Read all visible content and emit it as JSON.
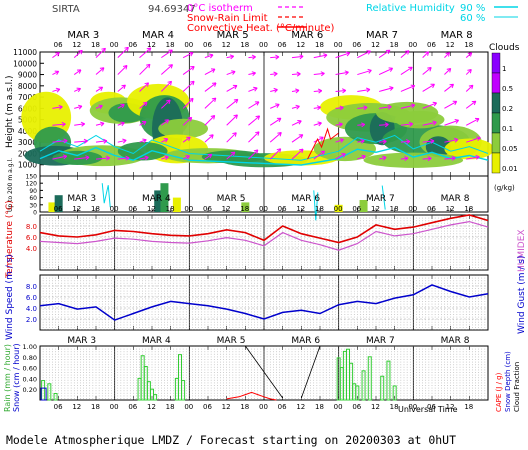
{
  "header": {
    "site": "SIRTA",
    "coords": "94.69347",
    "legend_left": [
      {
        "label": "0°C isotherm",
        "style": "dashed",
        "color": "#ff00ff"
      },
      {
        "label": "Snow-Rain Limit",
        "style": "dashed",
        "color": "#ff0000"
      },
      {
        "label": "Convective Heat. (°C/minute)",
        "style": "solid",
        "color": "#ff0000"
      }
    ],
    "legend_right": [
      {
        "label": "Relative Humidity",
        "value": "90 %",
        "color": "#00e5ff"
      },
      {
        "label": "",
        "value": "60 %",
        "color": "#00e5ff"
      }
    ]
  },
  "time_axis": {
    "day_labels": [
      "MAR 3",
      "MAR 4",
      "MAR 5",
      "MAR 6",
      "MAR 7",
      "MAR 8"
    ],
    "hour_labels": [
      "06",
      "12",
      "18",
      "00",
      "06",
      "12",
      "18",
      "00",
      "06",
      "12",
      "18",
      "00",
      "06",
      "12",
      "18",
      "00",
      "06",
      "12",
      "18",
      "00",
      "06",
      "12",
      "18"
    ],
    "xlabel": "Universal Time"
  },
  "clouds_legend": {
    "title": "Clouds",
    "unit": "(g/kg)",
    "levels": [
      "1",
      "0.5",
      "0.2",
      "0.1",
      "0.05",
      "0.01"
    ]
  },
  "panel_labels": {
    "height": "Height (m a.s.l.)",
    "lower_height": "Up to 200 m a.g.l.",
    "temperature": "Temperature (°C)",
    "humidex": "HUMIDEX",
    "wind_speed": "Wind Speed (m / s)",
    "wind_gust": "Wind Gust (m / s)",
    "rain": "Rain (mm / hour)",
    "snow": "Snow (cm / hour)",
    "cape": "CAPE (J / g)",
    "snow_depth": "Snow Depth (cm)",
    "cloud_fraction": "Cloud Fraction"
  },
  "footer": "Modele Atmospherique LMDZ / Forecast starting on 20200303 at 0hUT",
  "colors": {
    "temperature": "#e00000",
    "humidex": "#cc55cc",
    "wind": "#0000cc",
    "rain": "#33cc33",
    "cloud_dark": "#1b6b5a",
    "cloud_mid": "#2f9a4c",
    "cloud_light": "#8ccc3c",
    "cloud_pale": "#e8f000"
  },
  "chart_data": [
    {
      "type": "area",
      "name": "clouds",
      "ylabel": "Height (m a.s.l.)",
      "ylim": [
        0,
        11000
      ],
      "yticks": [
        1000,
        2000,
        3000,
        4000,
        5000,
        6000,
        7000,
        8000,
        9000,
        10000,
        11000
      ]
    },
    {
      "type": "area",
      "name": "low levels",
      "ylabel": "Up to 200 m a.g.l.",
      "ylim": [
        0,
        150
      ],
      "yticks": [
        0,
        30,
        60,
        90,
        120,
        150
      ]
    },
    {
      "type": "line",
      "name": "temperature",
      "ylabel": "Temperature (°C)",
      "ylim": [
        0,
        10
      ],
      "yticks": [
        4.0,
        6.0,
        8.0
      ],
      "x_hours": [
        0,
        6,
        12,
        18,
        24,
        30,
        36,
        42,
        48,
        54,
        60,
        66,
        72,
        78,
        84,
        90,
        96,
        102,
        108,
        114,
        120,
        126,
        132,
        138,
        144
      ],
      "series": [
        {
          "name": "Temperature",
          "values": [
            6.8,
            6.2,
            6.0,
            6.4,
            7.2,
            7.0,
            6.6,
            6.3,
            6.2,
            6.6,
            7.3,
            6.8,
            5.4,
            8.0,
            6.6,
            5.8,
            5.0,
            6.0,
            8.2,
            7.4,
            7.8,
            8.6,
            9.4,
            10.0,
            9.0
          ]
        },
        {
          "name": "HUMIDEX",
          "values": [
            5.2,
            5.0,
            4.8,
            5.2,
            5.8,
            5.6,
            5.2,
            5.0,
            4.9,
            5.3,
            5.9,
            5.4,
            4.4,
            6.8,
            5.4,
            4.6,
            3.6,
            4.8,
            7.0,
            6.2,
            6.6,
            7.4,
            8.2,
            8.8,
            7.8
          ]
        }
      ]
    },
    {
      "type": "line",
      "name": "wind speed",
      "ylabel": "Wind Speed (m / s)",
      "ylim": [
        0,
        10
      ],
      "yticks": [
        2.0,
        4.0,
        6.0,
        8.0
      ],
      "x_hours": [
        0,
        6,
        12,
        18,
        24,
        30,
        36,
        42,
        48,
        54,
        60,
        66,
        72,
        78,
        84,
        90,
        96,
        102,
        108,
        114,
        120,
        126,
        132,
        138,
        144
      ],
      "series": [
        {
          "name": "Wind Speed",
          "values": [
            4.4,
            4.8,
            3.8,
            4.2,
            1.8,
            3.0,
            4.2,
            5.2,
            4.8,
            4.4,
            3.8,
            3.0,
            2.0,
            3.2,
            3.6,
            3.0,
            4.6,
            5.2,
            4.8,
            5.8,
            6.4,
            8.2,
            7.0,
            6.0,
            6.6
          ]
        }
      ]
    },
    {
      "type": "bar",
      "name": "precipitation",
      "ylabel": "Rain (mm / hour)",
      "ylim": [
        0,
        1.0
      ],
      "yticks": [
        0.2,
        0.4,
        0.6,
        0.8,
        1.0
      ],
      "rain_hours": [
        1,
        3,
        5,
        32,
        33,
        34,
        35,
        36,
        37,
        44,
        45,
        46,
        96,
        97,
        98,
        99,
        100,
        101,
        102,
        104,
        106,
        110,
        112,
        114
      ],
      "rain_values": [
        0.36,
        0.3,
        0.12,
        0.4,
        0.82,
        0.62,
        0.34,
        0.2,
        0.1,
        0.4,
        0.84,
        0.36,
        0.78,
        0.6,
        0.9,
        0.94,
        0.68,
        0.3,
        0.26,
        0.54,
        0.8,
        0.44,
        0.72,
        0.26
      ],
      "cape_hours": [
        60,
        64,
        66,
        68,
        70,
        72,
        74,
        76
      ],
      "cape_values": [
        0.02,
        0.06,
        0.1,
        0.14,
        0.1,
        0.06,
        0.02,
        0.0
      ]
    }
  ]
}
